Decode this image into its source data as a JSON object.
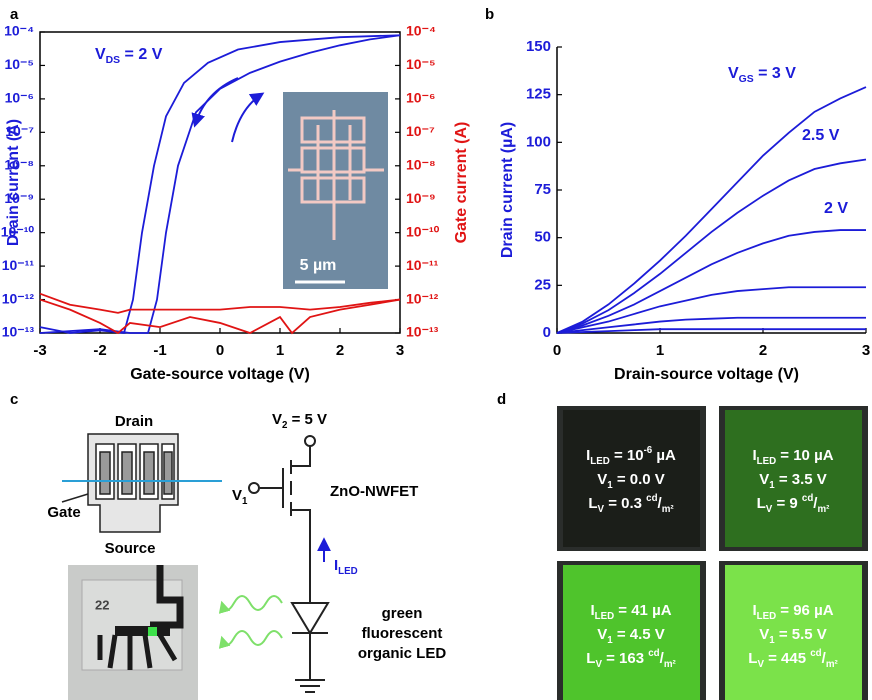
{
  "chart_data": [
    {
      "type": "line",
      "panel": "a",
      "xlabel": "Gate-source voltage (V)",
      "ylabel": "Drain current  (A)",
      "y2label": "Gate current  (A)",
      "xlim": [
        -3,
        3
      ],
      "xticks": [
        -3,
        -2,
        -1,
        0,
        1,
        2,
        3
      ],
      "ylog": true,
      "ylim": [
        1e-13,
        0.0001
      ],
      "yticks": [
        {
          "value": 0.0001,
          "label": "10⁻⁴"
        },
        {
          "value": 1e-05,
          "label": "10⁻⁵"
        },
        {
          "value": 1e-06,
          "label": "10⁻⁶"
        },
        {
          "value": 1e-07,
          "label": "10⁻⁷"
        },
        {
          "value": 1e-08,
          "label": "10⁻⁸"
        },
        {
          "value": 1e-09,
          "label": "10⁻⁹"
        },
        {
          "value": 1e-10,
          "label": "10⁻¹⁰"
        },
        {
          "value": 1e-11,
          "label": "10⁻¹¹"
        },
        {
          "value": 1e-12,
          "label": "10⁻¹²"
        },
        {
          "value": 1e-13,
          "label": "10⁻¹³"
        }
      ],
      "y2lim": [
        1e-13,
        0.0001
      ],
      "y2ticks": [
        {
          "value": 0.0001,
          "label": "10⁻⁴"
        },
        {
          "value": 1e-05,
          "label": "10⁻⁵"
        },
        {
          "value": 1e-06,
          "label": "10⁻⁶"
        },
        {
          "value": 1e-07,
          "label": "10⁻⁷"
        },
        {
          "value": 1e-08,
          "label": "10⁻⁸"
        },
        {
          "value": 1e-09,
          "label": "10⁻⁹"
        },
        {
          "value": 1e-10,
          "label": "10⁻¹⁰"
        },
        {
          "value": 1e-11,
          "label": "10⁻¹¹"
        },
        {
          "value": 1e-12,
          "label": "10⁻¹²"
        },
        {
          "value": 1e-13,
          "label": "10⁻¹³"
        }
      ],
      "annotation": [
        [
          "V"
        ],
        [
          "DS",
          "sub"
        ],
        [
          " = 2 V"
        ]
      ],
      "inset_scale": "5 µm",
      "series": [
        {
          "color": "#1c1cd8",
          "x": [
            -3,
            -2.5,
            -2,
            -1.6,
            -1.45,
            -1.3,
            -1.1,
            -0.9,
            -0.6,
            -0.2,
            0.3,
            1,
            2,
            3
          ],
          "values": [
            1.5e-13,
            1e-13,
            1.2e-13,
            1e-13,
            1e-12,
            1e-10,
            1e-08,
            3e-07,
            3e-06,
            1.2e-05,
            3e-05,
            5e-05,
            7e-05,
            8e-05
          ]
        },
        {
          "color": "#1c1cd8",
          "x": [
            -3,
            -2,
            -1.5,
            -1.2,
            -1.05,
            -0.9,
            -0.7,
            -0.4,
            0,
            0.5,
            1,
            1.5,
            2,
            2.5,
            3
          ],
          "values": [
            1e-13,
            1.3e-13,
            1e-13,
            1e-13,
            1e-12,
            1e-10,
            1e-08,
            4e-07,
            2e-06,
            6e-06,
            1.3e-05,
            2.4e-05,
            4e-05,
            6e-05,
            8e-05
          ]
        },
        {
          "color": "#e01414",
          "axis": "y2",
          "x": [
            -3,
            -2.5,
            -2,
            -1.7,
            -1.5,
            -1,
            -0.5,
            0,
            0.5,
            1,
            1.5,
            2,
            2.5,
            3
          ],
          "values": [
            1.5e-12,
            7e-13,
            5e-13,
            4e-13,
            5e-13,
            5e-13,
            5e-13,
            5e-13,
            6e-13,
            6e-13,
            5e-13,
            6e-13,
            8e-13,
            1e-12
          ]
        },
        {
          "color": "#e01414",
          "axis": "y2",
          "x": [
            -3,
            -2.5,
            -2,
            -1.7,
            -1.5,
            -1,
            -0.5,
            0,
            0.5,
            1,
            1.2,
            1.5,
            2,
            2.5,
            3
          ],
          "values": [
            1e-12,
            5e-13,
            2e-13,
            1e-13,
            2e-13,
            1.5e-13,
            3e-13,
            2e-13,
            1e-13,
            3e-13,
            1e-13,
            3e-13,
            5e-13,
            7e-13,
            1e-12
          ]
        }
      ]
    },
    {
      "type": "line",
      "panel": "b",
      "xlabel": "Drain-source voltage (V)",
      "ylabel": "Drain current (µA)",
      "xlim": [
        0,
        3
      ],
      "xticks": [
        0,
        1,
        2,
        3
      ],
      "ylim": [
        0,
        150
      ],
      "yticks": [
        0,
        25,
        50,
        75,
        100,
        125,
        150
      ],
      "x": [
        0,
        0.25,
        0.5,
        0.75,
        1,
        1.25,
        1.5,
        1.75,
        2,
        2.25,
        2.5,
        2.75,
        3
      ],
      "annotations": [
        [
          [
            "V"
          ],
          [
            "GS",
            "sub"
          ],
          [
            " = 3 V"
          ]
        ],
        [
          [
            "2.5 V"
          ]
        ],
        [
          [
            "2 V"
          ]
        ]
      ],
      "series": [
        {
          "color": "#1c1cd8",
          "values": [
            0,
            6,
            15,
            26,
            38,
            51,
            65,
            79,
            93,
            105,
            116,
            123,
            129
          ]
        },
        {
          "color": "#1c1cd8",
          "values": [
            0,
            5,
            12,
            21,
            31,
            42,
            53,
            63,
            72,
            80,
            86,
            89,
            91
          ]
        },
        {
          "color": "#1c1cd8",
          "values": [
            0,
            4,
            9,
            15,
            22,
            29,
            36,
            42,
            47,
            51,
            53,
            54,
            54
          ]
        },
        {
          "color": "#1c1cd8",
          "values": [
            0,
            3,
            6,
            10,
            14,
            17,
            20,
            22,
            23,
            24,
            24,
            24,
            24
          ]
        },
        {
          "color": "#1c1cd8",
          "values": [
            0,
            1.5,
            3,
            4.5,
            6,
            7,
            7.5,
            8,
            8,
            8,
            8,
            8,
            8
          ]
        },
        {
          "color": "#1c1cd8",
          "values": [
            0,
            0.5,
            1,
            1.5,
            2,
            2,
            2,
            2,
            2,
            2,
            2,
            2,
            2
          ]
        }
      ]
    }
  ],
  "diagram": {
    "panel": "c",
    "drain": "Drain",
    "gate": "Gate",
    "source": "Source",
    "v2": [
      [
        "V"
      ],
      [
        "2",
        "sub"
      ],
      [
        " = 5 V"
      ]
    ],
    "v1": [
      [
        "V"
      ],
      [
        "1",
        "sub"
      ]
    ],
    "device": "ZnO-NWFET",
    "current": [
      [
        "I"
      ],
      [
        "LED",
        "sub"
      ]
    ],
    "led": [
      "green",
      "fluorescent",
      "organic LED"
    ],
    "chip_number": "22"
  },
  "photos": {
    "panel": "d",
    "tiles": [
      {
        "color": "#1b1e19",
        "lines": [
          [
            [
              "I"
            ],
            [
              "LED",
              "sub"
            ],
            [
              " = 10"
            ],
            [
              "-6",
              "sup"
            ],
            [
              " µA"
            ]
          ],
          [
            [
              "V"
            ],
            [
              "1",
              "sub"
            ],
            [
              " = 0.0 V"
            ]
          ],
          [
            [
              "L"
            ],
            [
              "V",
              "sub"
            ],
            [
              " = 0.3 "
            ],
            [
              "cd",
              "sup"
            ],
            [
              "/"
            ],
            [
              "m²",
              "sub"
            ]
          ]
        ]
      },
      {
        "color": "#2e6f1f",
        "lines": [
          [
            [
              "I"
            ],
            [
              "LED",
              "sub"
            ],
            [
              " = 10 µA"
            ]
          ],
          [
            [
              "V"
            ],
            [
              "1",
              "sub"
            ],
            [
              " = 3.5 V"
            ]
          ],
          [
            [
              "L"
            ],
            [
              "V",
              "sub"
            ],
            [
              " = 9 "
            ],
            [
              "cd",
              "sup"
            ],
            [
              "/"
            ],
            [
              "m²",
              "sub"
            ]
          ]
        ]
      },
      {
        "color": "#4fc42c",
        "lines": [
          [
            [
              "I"
            ],
            [
              "LED",
              "sub"
            ],
            [
              " = 41 µA"
            ]
          ],
          [
            [
              "V"
            ],
            [
              "1",
              "sub"
            ],
            [
              " = 4.5 V"
            ]
          ],
          [
            [
              "L"
            ],
            [
              "V",
              "sub"
            ],
            [
              " = 163 "
            ],
            [
              "cd",
              "sup"
            ],
            [
              "/"
            ],
            [
              "m²",
              "sub"
            ]
          ]
        ]
      },
      {
        "color": "#7be24a",
        "lines": [
          [
            [
              "I"
            ],
            [
              "LED",
              "sub"
            ],
            [
              " = 96 µA"
            ]
          ],
          [
            [
              "V"
            ],
            [
              "1",
              "sub"
            ],
            [
              " = 5.5 V"
            ]
          ],
          [
            [
              "L"
            ],
            [
              "V",
              "sub"
            ],
            [
              " = 445 "
            ],
            [
              "cd",
              "sup"
            ],
            [
              "/"
            ],
            [
              "m²",
              "sub"
            ]
          ]
        ]
      }
    ]
  }
}
